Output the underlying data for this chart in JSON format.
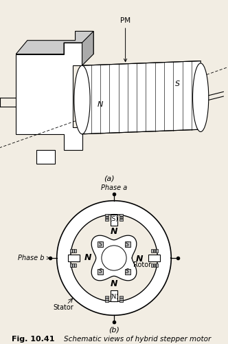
{
  "title": "Fig. 10.41",
  "caption": "Schematic views of hybrid stepper motor",
  "bg_color": "#f2ede3",
  "label_a": "(a)",
  "label_b": "(b)",
  "phase_a_label": "Phase a",
  "phase_b_label": "Phase b",
  "rotor_label": "Rotor",
  "stator_label": "Stator",
  "S_top": "(S)",
  "N_bottom": "(N)",
  "PM_label": "PM",
  "N_label": "N",
  "S_label": "S"
}
